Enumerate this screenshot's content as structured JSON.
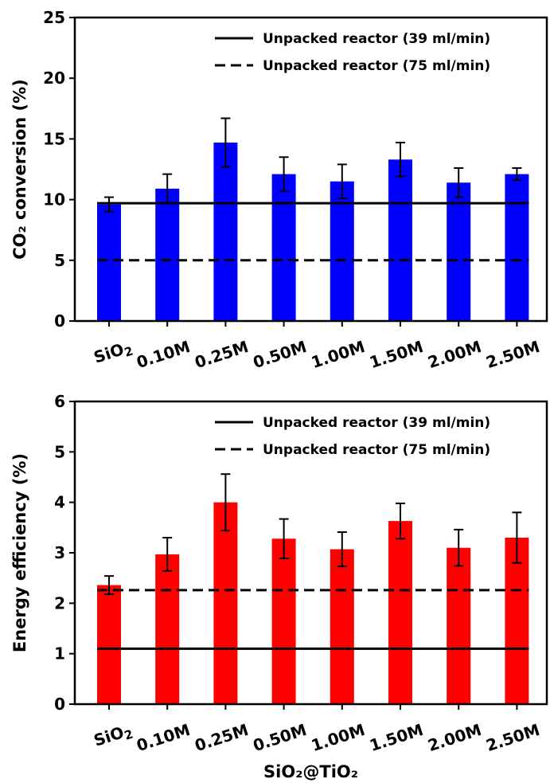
{
  "chart_data": [
    {
      "type": "bar",
      "categories": [
        "SiO2",
        "0.10M",
        "0.25M",
        "0.50M",
        "1.00M",
        "1.50M",
        "2.00M",
        "2.50M"
      ],
      "values": [
        9.6,
        10.9,
        14.7,
        12.1,
        11.5,
        13.3,
        11.4,
        12.1
      ],
      "errors": [
        0.6,
        1.2,
        2.0,
        1.4,
        1.4,
        1.4,
        1.2,
        0.5
      ],
      "bar_color": "#0000ff",
      "ylabel": "CO₂ conversion (%)",
      "ylim": [
        0,
        25
      ],
      "yticks": [
        "0",
        "5",
        "10",
        "15",
        "20",
        "25"
      ],
      "reference_lines": [
        {
          "name": "Unpacked reactor (39 ml/min)",
          "value": 9.7,
          "style": "solid"
        },
        {
          "name": "Unpacked reactor (75 ml/min)",
          "value": 5.0,
          "style": "dashed"
        }
      ],
      "legend_position": "top-right",
      "grid": false
    },
    {
      "type": "bar",
      "categories": [
        "SiO2",
        "0.10M",
        "0.25M",
        "0.50M",
        "1.00M",
        "1.50M",
        "2.00M",
        "2.50M"
      ],
      "values": [
        2.36,
        2.97,
        4.0,
        3.28,
        3.07,
        3.63,
        3.1,
        3.3
      ],
      "errors": [
        0.18,
        0.33,
        0.56,
        0.39,
        0.34,
        0.35,
        0.36,
        0.5
      ],
      "bar_color": "#ff0000",
      "ylabel": "Energy efficiency (%)",
      "xlabel": "SiO₂@TiO₂",
      "ylim": [
        0,
        6
      ],
      "yticks": [
        "0",
        "1",
        "2",
        "3",
        "4",
        "5",
        "6"
      ],
      "reference_lines": [
        {
          "name": "Unpacked reactor (39 ml/min)",
          "value": 1.1,
          "style": "solid"
        },
        {
          "name": "Unpacked reactor (75 ml/min)",
          "value": 2.26,
          "style": "dashed"
        }
      ],
      "legend_position": "top-right",
      "grid": false
    }
  ]
}
